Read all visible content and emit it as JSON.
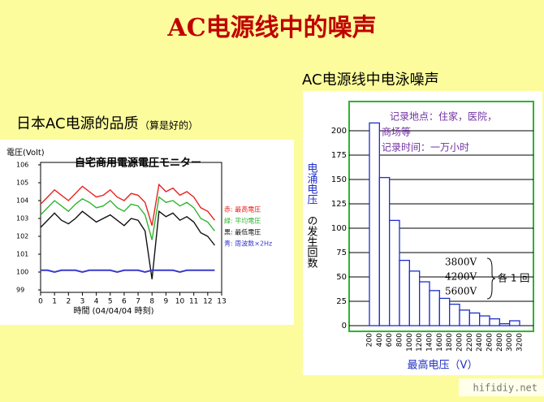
{
  "title": "AC电源线中的噪声",
  "watermark": "hifidiy.net",
  "chart_data": [
    {
      "type": "line",
      "heading": "日本AC电源的品质",
      "heading_note": "（算是好的）",
      "title": "自宅商用電源電圧モニター",
      "y_label": "電圧(Volt)",
      "x_label": "時間 (04/04/04 時刻)",
      "x": [
        0,
        0.5,
        1,
        1.5,
        2,
        2.5,
        3,
        3.5,
        4,
        4.5,
        5,
        5.5,
        6,
        6.5,
        7,
        7.5,
        8,
        8.5,
        9,
        9.5,
        10,
        10.5,
        11,
        11.5,
        12,
        12.5
      ],
      "series": [
        {
          "name": "赤: 最高電圧",
          "color": "#e8231e",
          "values": [
            103.8,
            104.2,
            104.6,
            104.3,
            104.0,
            104.4,
            104.8,
            104.5,
            104.2,
            104.3,
            104.6,
            104.2,
            104.0,
            104.4,
            104.3,
            103.9,
            102.6,
            104.9,
            104.5,
            104.7,
            104.3,
            104.5,
            104.2,
            103.6,
            103.4,
            102.9
          ]
        },
        {
          "name": "緑: 平均電圧",
          "color": "#2fb52f",
          "values": [
            103.2,
            103.6,
            104.0,
            103.7,
            103.4,
            103.8,
            104.1,
            103.9,
            103.6,
            103.7,
            104.0,
            103.6,
            103.4,
            103.8,
            103.7,
            103.2,
            101.8,
            104.2,
            103.9,
            104.0,
            103.7,
            103.9,
            103.6,
            103.0,
            102.8,
            102.3
          ]
        },
        {
          "name": "黒: 最低電圧",
          "color": "#111111",
          "values": [
            102.5,
            102.9,
            103.3,
            102.9,
            102.7,
            103.0,
            103.4,
            103.1,
            102.8,
            103.0,
            103.2,
            102.9,
            102.6,
            103.0,
            102.9,
            102.3,
            99.6,
            103.4,
            103.1,
            103.3,
            102.9,
            103.1,
            102.8,
            102.2,
            102.0,
            101.5
          ]
        },
        {
          "name": "青: 周波数×2Hz",
          "color": "#3a3ad0",
          "values": [
            100.1,
            100.1,
            100.0,
            100.1,
            100.1,
            100.1,
            100.0,
            100.1,
            100.1,
            100.1,
            100.1,
            100.0,
            100.1,
            100.1,
            100.1,
            100.0,
            100.1,
            100.1,
            100.1,
            100.1,
            100.0,
            100.1,
            100.1,
            100.1,
            100.1,
            100.1
          ]
        }
      ],
      "xlim": [
        0,
        13
      ],
      "xticks": [
        0,
        1,
        2,
        3,
        4,
        5,
        6,
        7,
        8,
        9,
        10,
        11,
        12,
        13
      ],
      "ylim": [
        99,
        106
      ],
      "yticks": [
        99,
        100,
        101,
        102,
        103,
        104,
        105,
        106
      ]
    },
    {
      "type": "histogram",
      "heading": "AC电源线中电泳噪声",
      "y_label": "电涌电压",
      "y_label_suffix": "の发生回数",
      "x_label": "最高电压（V）",
      "annotation": [
        "记录地点：住家，医院，",
        "商场等",
        "记录时间：一万小时"
      ],
      "notes": [
        "3800V",
        "4200V",
        "5600V"
      ],
      "note_label": "各 1 回",
      "bins": [
        200,
        400,
        600,
        800,
        1000,
        1200,
        1400,
        1600,
        1800,
        2000,
        2200,
        2400,
        2600,
        2800,
        3000,
        3200
      ],
      "values": [
        208,
        152,
        108,
        67,
        56,
        45,
        36,
        28,
        22,
        16,
        13,
        10,
        7,
        2,
        5
      ],
      "color": "#1f2fc8",
      "ylim": [
        0,
        215
      ],
      "yticks": [
        0,
        25,
        50,
        75,
        100,
        125,
        150,
        175,
        200
      ],
      "grid": true
    }
  ]
}
